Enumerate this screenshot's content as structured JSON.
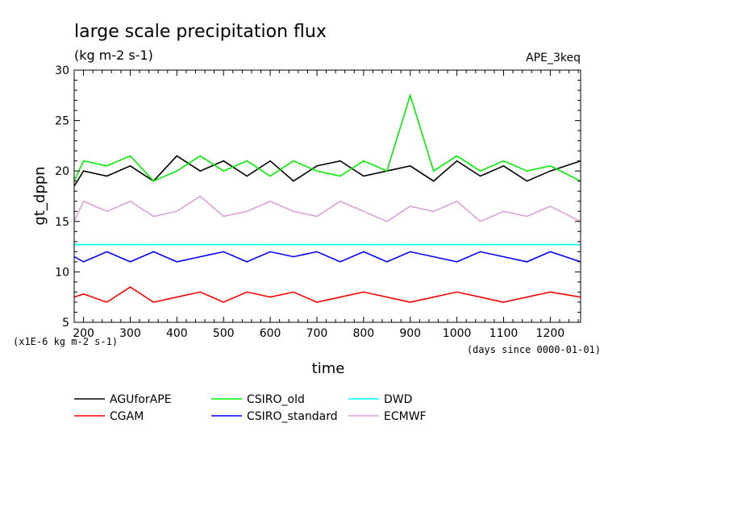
{
  "chart_data": {
    "type": "line",
    "title": "large scale precipitation flux",
    "subtitle": "(kg m-2 s-1)",
    "tag": "APE_3keq",
    "xlabel": "time",
    "ylabel": "gt_dppn",
    "x_unit_note": "(days since 0000-01-01)",
    "y_scale_note": "(x1E-6 kg m-2 s-1)",
    "xlim": [
      180,
      1265
    ],
    "ylim": [
      5,
      30
    ],
    "xticks": [
      200,
      300,
      400,
      500,
      600,
      700,
      800,
      900,
      1000,
      1100,
      1200
    ],
    "yticks": [
      5,
      10,
      15,
      20,
      25,
      30
    ],
    "grid": false,
    "legend_position": "bottom",
    "x": [
      180,
      200,
      250,
      300,
      350,
      400,
      450,
      500,
      550,
      600,
      650,
      700,
      750,
      800,
      850,
      900,
      950,
      1000,
      1050,
      1100,
      1150,
      1200,
      1265
    ],
    "series": [
      {
        "name": "AGUforAPE",
        "color": "#000000",
        "values": [
          18.5,
          20.0,
          19.5,
          20.5,
          19.0,
          21.5,
          20.0,
          21.0,
          19.5,
          21.0,
          19.0,
          20.5,
          21.0,
          19.5,
          20.0,
          20.5,
          19.0,
          21.0,
          19.5,
          20.5,
          19.0,
          20.0,
          21.0
        ]
      },
      {
        "name": "CGAM",
        "color": "#ff0000",
        "values": [
          7.5,
          7.8,
          7.0,
          8.5,
          7.0,
          7.5,
          8.0,
          7.0,
          8.0,
          7.5,
          8.0,
          7.0,
          7.5,
          8.0,
          7.5,
          7.0,
          7.5,
          8.0,
          7.5,
          7.0,
          7.5,
          8.0,
          7.5
        ]
      },
      {
        "name": "CSIRO_old",
        "color": "#00ee00",
        "values": [
          19.0,
          21.0,
          20.5,
          21.5,
          19.0,
          20.0,
          21.5,
          20.0,
          21.0,
          19.5,
          21.0,
          20.0,
          19.5,
          21.0,
          20.0,
          27.5,
          20.0,
          21.5,
          20.0,
          21.0,
          20.0,
          20.5,
          19.0
        ]
      },
      {
        "name": "CSIRO_standard",
        "color": "#0000ff",
        "values": [
          11.5,
          11.0,
          12.0,
          11.0,
          12.0,
          11.0,
          11.5,
          12.0,
          11.0,
          12.0,
          11.5,
          12.0,
          11.0,
          12.0,
          11.0,
          12.0,
          11.5,
          11.0,
          12.0,
          11.5,
          11.0,
          12.0,
          11.0
        ]
      },
      {
        "name": "DWD",
        "color": "#00ffff",
        "values": [
          12.7,
          12.7,
          12.7,
          12.7,
          12.7,
          12.7,
          12.7,
          12.7,
          12.7,
          12.7,
          12.7,
          12.7,
          12.7,
          12.7,
          12.7,
          12.7,
          12.7,
          12.7,
          12.7,
          12.7,
          12.7,
          12.7,
          12.7
        ]
      },
      {
        "name": "ECMWF",
        "color": "#dda0dd",
        "values": [
          15.0,
          17.0,
          16.0,
          17.0,
          15.5,
          16.0,
          17.5,
          15.5,
          16.0,
          17.0,
          16.0,
          15.5,
          17.0,
          16.0,
          15.0,
          16.5,
          16.0,
          17.0,
          15.0,
          16.0,
          15.5,
          16.5,
          15.0
        ]
      }
    ]
  }
}
